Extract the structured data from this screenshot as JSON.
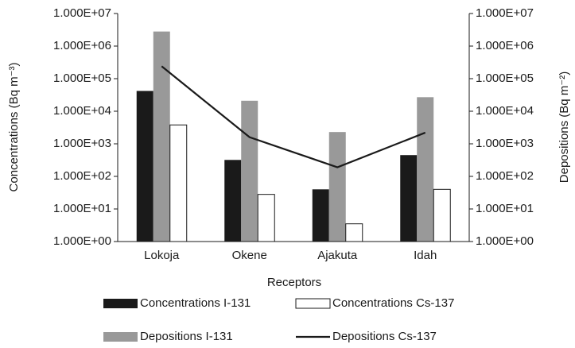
{
  "chart_data": {
    "type": "bar",
    "log_scale": true,
    "xlabel": "Receptors",
    "ylabel": "Concentrations (Bq m⁻³)",
    "y2label": "Depositions (Bq m⁻²)",
    "categories": [
      "Lokoja",
      "Okene",
      "Ajakuta",
      "Idah"
    ],
    "series": [
      {
        "name": "Concentrations I-131",
        "type": "bar",
        "color": "#1a1a1a",
        "values": [
          42000,
          320,
          40,
          450
        ]
      },
      {
        "name": "Depositions I-131",
        "type": "bar",
        "axis": "y2",
        "color": "#999999",
        "values": [
          2800000,
          21000,
          2300,
          27000
        ]
      },
      {
        "name": "Concentrations Cs-137",
        "type": "bar",
        "color": "#ffffff",
        "values": [
          3800,
          28,
          3.5,
          40
        ]
      },
      {
        "name": "Depositions Cs-137",
        "type": "line",
        "axis": "y2",
        "color": "#1a1a1a",
        "values": [
          240000,
          1600,
          190,
          2200
        ]
      }
    ],
    "ylim": [
      1,
      10000000
    ],
    "yticks": [
      {
        "value": 1,
        "label": "1.000E+00"
      },
      {
        "value": 10,
        "label": "1.000E+01"
      },
      {
        "value": 100,
        "label": "1.000E+02"
      },
      {
        "value": 1000,
        "label": "1.000E+03"
      },
      {
        "value": 10000,
        "label": "1.000E+04"
      },
      {
        "value": 100000,
        "label": "1.000E+05"
      },
      {
        "value": 1000000,
        "label": "1.000E+06"
      },
      {
        "value": 10000000,
        "label": "1.000E+07"
      }
    ],
    "y2lim": [
      1,
      10000000
    ],
    "y2ticks": [
      {
        "value": 1,
        "label": "1.000E+00"
      },
      {
        "value": 10,
        "label": "1.000E+01"
      },
      {
        "value": 100,
        "label": "1.000E+02"
      },
      {
        "value": 1000,
        "label": "1.000E+03"
      },
      {
        "value": 10000,
        "label": "1.000E+04"
      },
      {
        "value": 100000,
        "label": "1.000E+05"
      },
      {
        "value": 1000000,
        "label": "1.000E+06"
      },
      {
        "value": 10000000,
        "label": "1.000E+07"
      }
    ]
  }
}
